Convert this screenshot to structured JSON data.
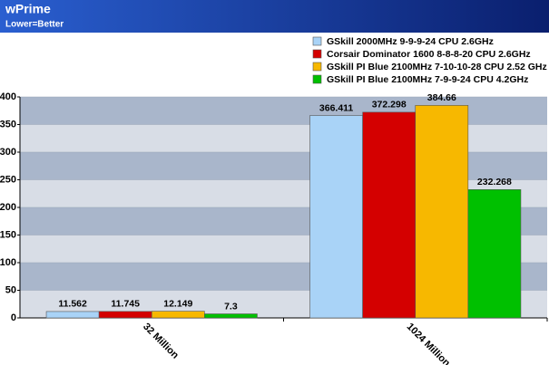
{
  "chart_data": {
    "type": "bar",
    "title": "wPrime",
    "subtitle": "Lower=Better",
    "categories": [
      "32 Million",
      "1024 Million"
    ],
    "series": [
      {
        "name": "GSkill 2000MHz 9-9-9-24 CPU 2.6GHz",
        "color": "#a9d3f7",
        "values": [
          11.562,
          366.411
        ]
      },
      {
        "name": "Corsair Dominator 1600 8-8-8-20 CPU 2.6GHz",
        "color": "#d40000",
        "values": [
          11.745,
          372.298
        ]
      },
      {
        "name": "GSkill PI Blue 2100MHz 7-10-10-28 CPU 2.52 GHz",
        "color": "#f7b800",
        "values": [
          12.149,
          384.66
        ]
      },
      {
        "name": "GSkill PI Blue 2100MHz 7-9-9-24 CPU 4.2GHz",
        "color": "#00c000",
        "values": [
          7.3,
          232.268
        ]
      }
    ],
    "ylim": [
      0,
      400
    ],
    "yticks": [
      0,
      50,
      100,
      150,
      200,
      250,
      300,
      350,
      400
    ],
    "grid": true,
    "legend": "top-right"
  }
}
